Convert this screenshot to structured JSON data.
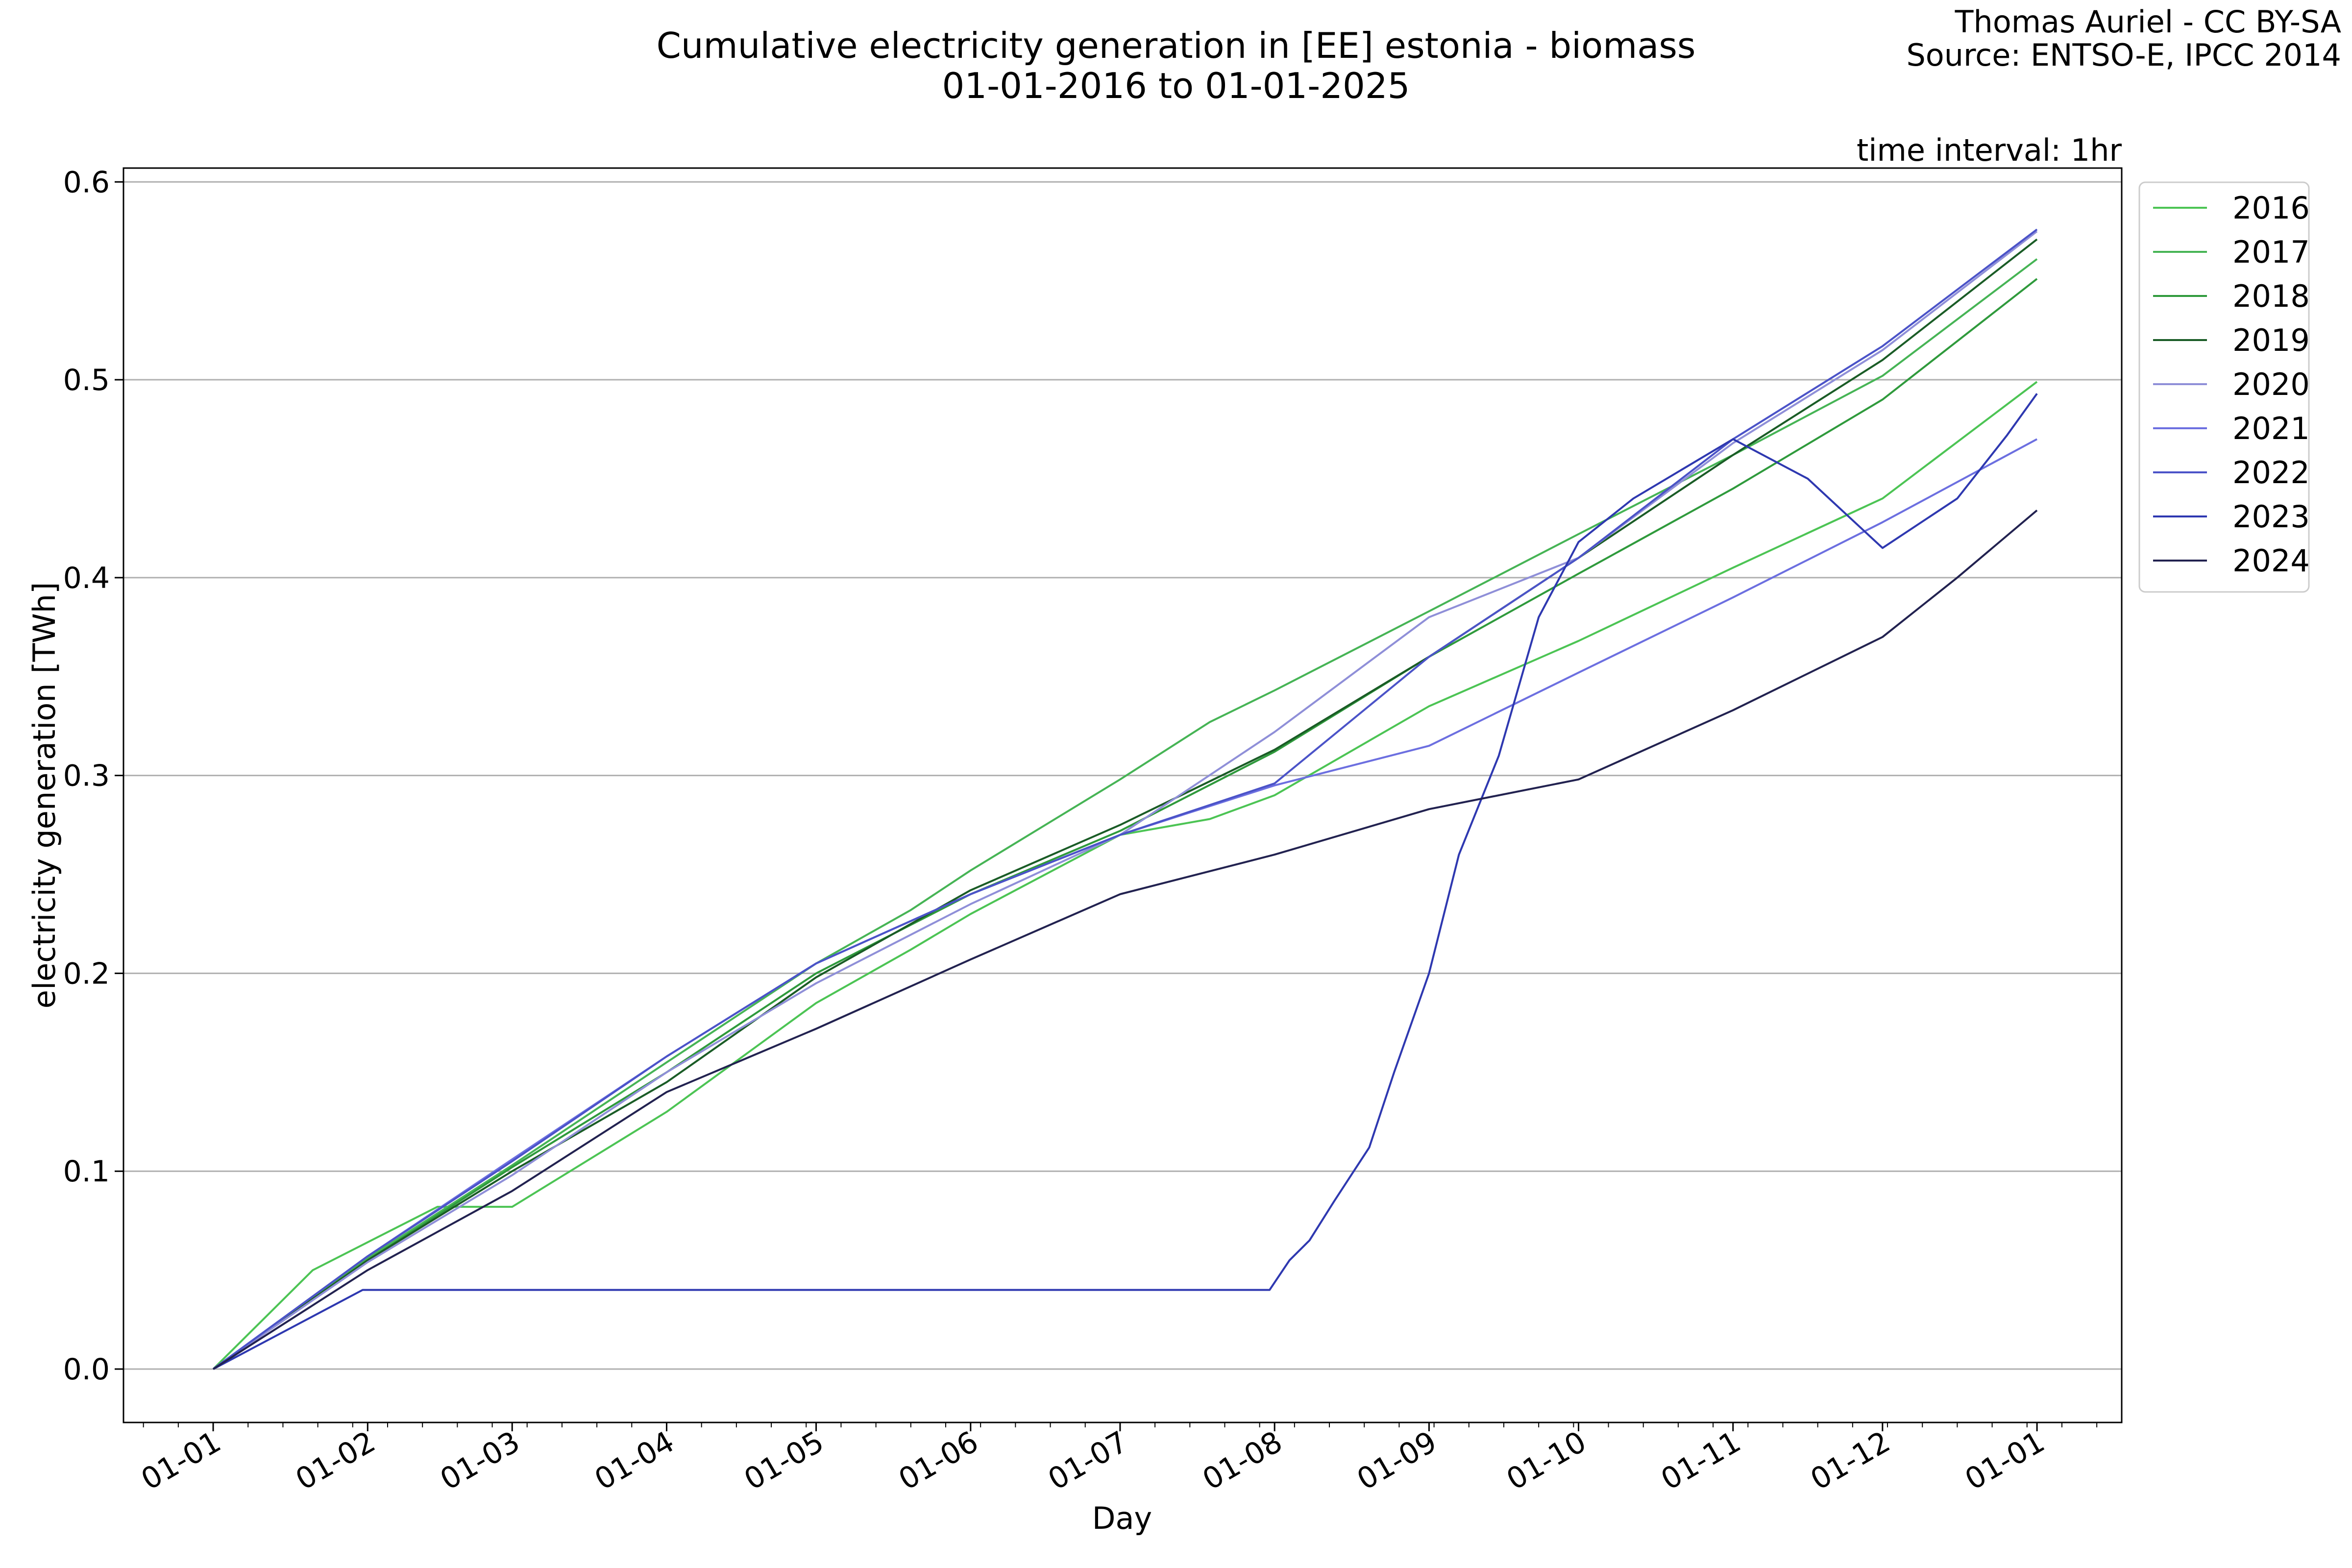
{
  "credits": {
    "line1": "Thomas Auriel - CC BY-SA",
    "line2": "Source: ENTSO-E, IPCC 2014"
  },
  "chart_data": {
    "type": "line",
    "title": "Cumulative electricity generation in [EE] estonia - biomass",
    "subtitle": "01-01-2016 to 01-01-2025",
    "annotation": "time interval: 1hr",
    "xlabel": "Day",
    "ylabel": "electricity generation [TWh]",
    "ylim": [
      -0.027,
      0.607
    ],
    "yticks": [
      0.0,
      0.1,
      0.2,
      0.3,
      0.4,
      0.5,
      0.6
    ],
    "ytick_labels": [
      "0.0",
      "0.1",
      "0.2",
      "0.3",
      "0.4",
      "0.5",
      "0.6"
    ],
    "xlim": [
      -18,
      383
    ],
    "xticks": [
      0,
      31,
      60,
      91,
      121,
      152,
      182,
      213,
      244,
      274,
      305,
      335,
      366
    ],
    "xtick_labels": [
      "01-01",
      "01-02",
      "01-03",
      "01-04",
      "01-05",
      "01-06",
      "01-07",
      "01-08",
      "01-09",
      "01-10",
      "01-11",
      "01-12",
      "01-01"
    ],
    "grid": "horizontal",
    "legend_position": "outside-right-top",
    "series": [
      {
        "name": "2016",
        "color": "#4cc454",
        "x": [
          0,
          20,
          45,
          60,
          91,
          121,
          140,
          152,
          182,
          200,
          213,
          244,
          274,
          305,
          335,
          366
        ],
        "values": [
          0,
          0.05,
          0.082,
          0.082,
          0.13,
          0.185,
          0.212,
          0.23,
          0.27,
          0.278,
          0.29,
          0.335,
          0.368,
          0.405,
          0.44,
          0.499
        ]
      },
      {
        "name": "2017",
        "color": "#46b455",
        "x": [
          0,
          31,
          60,
          91,
          121,
          140,
          152,
          182,
          200,
          213,
          244,
          274,
          305,
          335,
          366
        ],
        "values": [
          0,
          0.056,
          0.103,
          0.155,
          0.205,
          0.232,
          0.252,
          0.298,
          0.327,
          0.343,
          0.383,
          0.422,
          0.462,
          0.502,
          0.561
        ]
      },
      {
        "name": "2018",
        "color": "#2f9a3c",
        "x": [
          0,
          31,
          60,
          91,
          121,
          152,
          182,
          213,
          244,
          274,
          305,
          335,
          366
        ],
        "values": [
          0,
          0.055,
          0.102,
          0.15,
          0.2,
          0.24,
          0.272,
          0.312,
          0.36,
          0.402,
          0.445,
          0.49,
          0.551
        ]
      },
      {
        "name": "2019",
        "color": "#1a5c26",
        "x": [
          0,
          31,
          60,
          91,
          121,
          152,
          182,
          213,
          244,
          274,
          305,
          335,
          366
        ],
        "values": [
          0,
          0.055,
          0.1,
          0.145,
          0.198,
          0.242,
          0.275,
          0.313,
          0.36,
          0.41,
          0.462,
          0.51,
          0.571
        ]
      },
      {
        "name": "2020",
        "color": "#8f8fd8",
        "x": [
          0,
          31,
          60,
          91,
          121,
          152,
          182,
          213,
          244,
          274,
          305,
          335,
          366
        ],
        "values": [
          0,
          0.054,
          0.098,
          0.15,
          0.195,
          0.235,
          0.27,
          0.322,
          0.38,
          0.41,
          0.468,
          0.515,
          0.575
        ]
      },
      {
        "name": "2021",
        "color": "#6c6fe0",
        "x": [
          0,
          31,
          60,
          91,
          121,
          152,
          182,
          213,
          244,
          274,
          305,
          335,
          366
        ],
        "values": [
          0,
          0.057,
          0.106,
          0.158,
          0.205,
          0.24,
          0.27,
          0.295,
          0.315,
          0.352,
          0.39,
          0.428,
          0.47
        ]
      },
      {
        "name": "2022",
        "color": "#4b53c8",
        "x": [
          0,
          31,
          60,
          91,
          121,
          152,
          182,
          213,
          244,
          274,
          305,
          335,
          366
        ],
        "values": [
          0,
          0.057,
          0.105,
          0.158,
          0.205,
          0.24,
          0.27,
          0.296,
          0.36,
          0.41,
          0.47,
          0.517,
          0.576
        ]
      },
      {
        "name": "2023",
        "color": "#2e38b0",
        "x": [
          0,
          30,
          60,
          91,
          121,
          152,
          182,
          212,
          216,
          220,
          225,
          232,
          237,
          244,
          250,
          258,
          266,
          274,
          285,
          305,
          320,
          335,
          350,
          360,
          366
        ],
        "values": [
          0,
          0.04,
          0.04,
          0.04,
          0.04,
          0.04,
          0.04,
          0.04,
          0.055,
          0.065,
          0.085,
          0.112,
          0.15,
          0.2,
          0.26,
          0.31,
          0.38,
          0.418,
          0.44,
          0.47,
          0.45,
          0.415,
          0.44,
          0.472,
          0.493
        ]
      },
      {
        "name": "2024",
        "color": "#222250",
        "x": [
          0,
          31,
          60,
          91,
          121,
          152,
          182,
          213,
          244,
          274,
          305,
          335,
          350,
          366
        ],
        "values": [
          0,
          0.05,
          0.09,
          0.14,
          0.172,
          0.207,
          0.24,
          0.26,
          0.283,
          0.298,
          0.333,
          0.37,
          0.4,
          0.434
        ]
      }
    ]
  }
}
